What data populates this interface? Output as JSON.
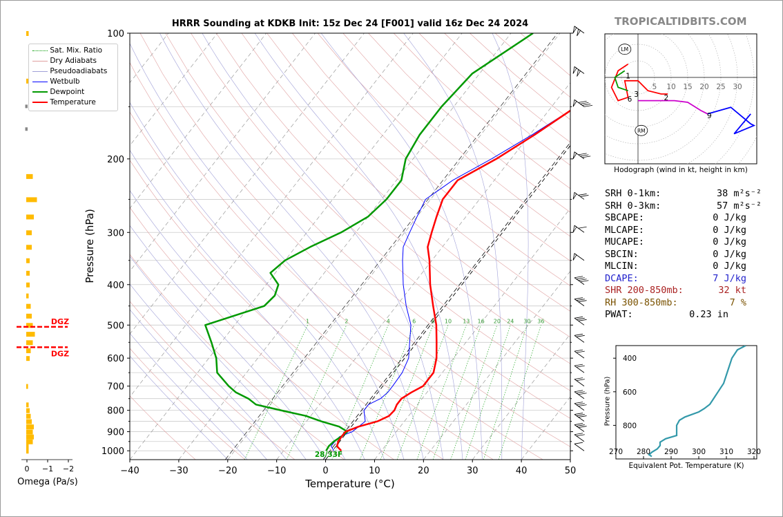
{
  "title": "HRRR Sounding at KDKB Init: 15z Dec 24 [F001] valid 16z Dec 24 2024",
  "watermark": "TROPICALTIDBITS.COM",
  "legend": [
    "Sat. Mix. Ratio",
    "Dry Adiabats",
    "Pseudoadiabats",
    "Wetbulb",
    "Dewpoint",
    "Temperature"
  ],
  "omega_xlabel": "Omega (Pa/s)",
  "dgz_label": "DGZ",
  "surface_label": "28/33F",
  "hodograph_caption": "Hodograph (wind in kt, height in km)",
  "hodo_rings": [
    "5",
    "10",
    "15",
    "20",
    "25",
    "30"
  ],
  "hodo_points": [
    "1",
    "2",
    "3",
    "6",
    "9"
  ],
  "hodo_markers": [
    "LM",
    "RM"
  ],
  "stats": [
    {
      "label": "SRH 0-1km:",
      "value": "38",
      "unit": "m²s⁻²",
      "color": "#000000"
    },
    {
      "label": "SRH 0-3km:",
      "value": "57",
      "unit": "m²s⁻²",
      "color": "#000000"
    },
    {
      "label": "SBCAPE:",
      "value": "0 J/kg",
      "unit": "",
      "color": "#000000"
    },
    {
      "label": "MLCAPE:",
      "value": "0 J/kg",
      "unit": "",
      "color": "#000000"
    },
    {
      "label": "MUCAPE:",
      "value": "0 J/kg",
      "unit": "",
      "color": "#000000"
    },
    {
      "label": "SBCIN:",
      "value": "0 J/kg",
      "unit": "",
      "color": "#000000"
    },
    {
      "label": "MLCIN:",
      "value": "0 J/kg",
      "unit": "",
      "color": "#000000"
    },
    {
      "label": "DCAPE:",
      "value": "7 J/kg",
      "unit": "",
      "color": "#2222cc"
    },
    {
      "label": "SHR 200-850mb:",
      "value": "32 kt",
      "unit": "",
      "color": "#aa2222"
    },
    {
      "label": "RH 300-850mb:",
      "value": "7 %",
      "unit": "",
      "color": "#7a5200"
    },
    {
      "label": "PWAT:",
      "value": "0.23 in",
      "unit": "",
      "color": "#000000"
    }
  ],
  "colors": {
    "temperature": "#ff0000",
    "dewpoint": "#009900",
    "wetbulb": "#0000ff",
    "hodo_low": "#ff0000",
    "hodo_mid": "#009900",
    "hodo_upper": "#cc00cc",
    "hodo_top": "#0000ff",
    "theta_e": "#3399aa",
    "omega": "#ffbb00",
    "dgz": "#ff0000"
  },
  "chart_data": [
    {
      "type": "line",
      "name": "skewt",
      "xlabel": "Temperature (°C)",
      "ylabel": "Pressure (hPa)",
      "xlim": [
        -40,
        50
      ],
      "ylim": [
        1050,
        100
      ],
      "x_ticks": [
        "−40",
        "−30",
        "−20",
        "−10",
        "0",
        "10",
        "20",
        "30",
        "40",
        "50"
      ],
      "y_ticks": [
        "100",
        "200",
        "300",
        "400",
        "500",
        "600",
        "700",
        "800",
        "900",
        "1000"
      ],
      "mixing_ratio_labels": [
        "1",
        "2",
        "4",
        "6",
        "8",
        "10",
        "13",
        "16",
        "20",
        "24",
        "30",
        "36"
      ],
      "temperature": [
        [
          1000,
          1.8
        ],
        [
          975,
          0.2
        ],
        [
          950,
          -0.3
        ],
        [
          925,
          -0.4
        ],
        [
          900,
          -0.4
        ],
        [
          875,
          1.5
        ],
        [
          850,
          4.5
        ],
        [
          825,
          6
        ],
        [
          800,
          6.2
        ],
        [
          775,
          5.8
        ],
        [
          750,
          5.8
        ],
        [
          725,
          6.8
        ],
        [
          700,
          8.2
        ],
        [
          650,
          8.2
        ],
        [
          600,
          6.5
        ],
        [
          550,
          4
        ],
        [
          500,
          1.2
        ],
        [
          450,
          -2.5
        ],
        [
          400,
          -6.5
        ],
        [
          350,
          -10.5
        ],
        [
          325,
          -13
        ],
        [
          300,
          -14.5
        ],
        [
          275,
          -16
        ],
        [
          250,
          -17.5
        ],
        [
          225,
          -17.5
        ],
        [
          200,
          -13
        ],
        [
          175,
          -9
        ],
        [
          150,
          -5
        ],
        [
          125,
          -1.5
        ],
        [
          100,
          1.5
        ]
      ],
      "dewpoint": [
        [
          1000,
          -1.3
        ],
        [
          975,
          -1.5
        ],
        [
          950,
          -1.2
        ],
        [
          925,
          -0.5
        ],
        [
          900,
          0
        ],
        [
          875,
          -2.5
        ],
        [
          850,
          -7
        ],
        [
          825,
          -11
        ],
        [
          800,
          -17
        ],
        [
          775,
          -23
        ],
        [
          750,
          -25.5
        ],
        [
          725,
          -29
        ],
        [
          700,
          -31.5
        ],
        [
          650,
          -36
        ],
        [
          600,
          -38.5
        ],
        [
          550,
          -42
        ],
        [
          500,
          -46
        ],
        [
          450,
          -37
        ],
        [
          425,
          -36.5
        ],
        [
          400,
          -37.5
        ],
        [
          375,
          -41
        ],
        [
          350,
          -40
        ],
        [
          325,
          -37
        ],
        [
          300,
          -33
        ],
        [
          275,
          -30
        ],
        [
          250,
          -29
        ],
        [
          225,
          -29
        ],
        [
          200,
          -31.5
        ],
        [
          175,
          -32.5
        ],
        [
          150,
          -32.5
        ],
        [
          125,
          -31.5
        ],
        [
          100,
          -25.5
        ]
      ],
      "wetbulb": [
        [
          1000,
          0.3
        ],
        [
          975,
          -1
        ],
        [
          950,
          -1
        ],
        [
          925,
          -0.8
        ],
        [
          900,
          1
        ],
        [
          875,
          1.5
        ],
        [
          850,
          2
        ],
        [
          825,
          1
        ],
        [
          800,
          0
        ],
        [
          775,
          0
        ],
        [
          750,
          1.5
        ],
        [
          725,
          2
        ],
        [
          700,
          2
        ],
        [
          650,
          1.8
        ],
        [
          600,
          0.8
        ],
        [
          550,
          -1.5
        ],
        [
          500,
          -4
        ],
        [
          450,
          -8
        ],
        [
          400,
          -12
        ],
        [
          350,
          -16
        ],
        [
          325,
          -18
        ],
        [
          300,
          -19
        ],
        [
          275,
          -20
        ],
        [
          250,
          -21
        ],
        [
          225,
          -18.5
        ],
        [
          200,
          -14
        ],
        [
          175,
          -9.5
        ],
        [
          150,
          -5
        ],
        [
          125,
          -2
        ],
        [
          100,
          1
        ]
      ],
      "wind_barbs_kt": [
        [
          1000,
          10
        ],
        [
          950,
          20
        ],
        [
          900,
          25
        ],
        [
          850,
          30
        ],
        [
          800,
          30
        ],
        [
          750,
          25
        ],
        [
          700,
          20
        ],
        [
          650,
          15
        ],
        [
          600,
          15
        ],
        [
          550,
          20
        ],
        [
          500,
          25
        ],
        [
          450,
          30
        ],
        [
          400,
          40
        ],
        [
          350,
          50
        ],
        [
          300,
          55
        ],
        [
          250,
          65
        ],
        [
          200,
          80
        ],
        [
          150,
          90
        ],
        [
          125,
          95
        ],
        [
          100,
          95
        ]
      ]
    },
    {
      "type": "line",
      "name": "hodograph",
      "xlim": [
        -10,
        37
      ],
      "ylim": [
        -25,
        13
      ],
      "low": [
        [
          -3,
          4
        ],
        [
          -6,
          2
        ],
        [
          -8,
          -3
        ],
        [
          -6,
          -7
        ],
        [
          -3,
          -6
        ],
        [
          -4,
          -1
        ],
        [
          0,
          -1
        ],
        [
          3,
          -4
        ],
        [
          7,
          -5
        ],
        [
          9,
          -5
        ]
      ],
      "mid": [
        [
          -3,
          -4
        ],
        [
          -6,
          -3
        ],
        [
          -7,
          0
        ],
        [
          -4,
          2
        ]
      ],
      "upper": [
        [
          0,
          -7
        ],
        [
          5,
          -7
        ],
        [
          11,
          -7
        ],
        [
          15,
          -7.5
        ],
        [
          19,
          -10
        ],
        [
          21,
          -11
        ]
      ],
      "top": [
        [
          21,
          -11
        ],
        [
          28,
          -9
        ],
        [
          34,
          -14
        ],
        [
          35,
          -14.5
        ],
        [
          29,
          -17
        ],
        [
          34,
          -11
        ]
      ]
    },
    {
      "type": "line",
      "name": "theta_e",
      "xlabel": "Equivalent Pot. Temperature (K)",
      "ylabel": "Pressure (hPa)",
      "xlim": [
        270,
        320
      ],
      "ylim": [
        1000,
        325
      ],
      "x_ticks": [
        "270",
        "280",
        "290",
        "300",
        "310",
        "320"
      ],
      "y_ticks": [
        "400",
        "600",
        "800"
      ],
      "points": [
        [
          985,
          283
        ],
        [
          975,
          282
        ],
        [
          960,
          283
        ],
        [
          940,
          285
        ],
        [
          920,
          286
        ],
        [
          900,
          286
        ],
        [
          880,
          288
        ],
        [
          860,
          292
        ],
        [
          840,
          292
        ],
        [
          800,
          292
        ],
        [
          770,
          293
        ],
        [
          750,
          295
        ],
        [
          720,
          300
        ],
        [
          700,
          302
        ],
        [
          675,
          304
        ],
        [
          650,
          305
        ],
        [
          625,
          306
        ],
        [
          600,
          307
        ],
        [
          575,
          308
        ],
        [
          550,
          309
        ],
        [
          500,
          310
        ],
        [
          450,
          311
        ],
        [
          400,
          312
        ],
        [
          350,
          314
        ],
        [
          325,
          317
        ]
      ]
    },
    {
      "type": "bar",
      "name": "omega",
      "xlabel": "Omega (Pa/s)",
      "x_ticks": [
        "0",
        "−1",
        "−2"
      ],
      "xlim": [
        0.4,
        -2
      ],
      "bars": [
        [
          100,
          -0.05
        ],
        [
          130,
          -0.05
        ],
        [
          150,
          0.05
        ],
        [
          170,
          0.05
        ],
        [
          220,
          -0.25
        ],
        [
          250,
          -0.45
        ],
        [
          275,
          -0.3
        ],
        [
          300,
          -0.2
        ],
        [
          325,
          -0.2
        ],
        [
          350,
          -0.1
        ],
        [
          375,
          -0.1
        ],
        [
          400,
          -0.1
        ],
        [
          425,
          -0.05
        ],
        [
          450,
          -0.15
        ],
        [
          475,
          -0.2
        ],
        [
          500,
          -0.25
        ],
        [
          525,
          -0.35
        ],
        [
          550,
          -0.25
        ],
        [
          575,
          -0.15
        ],
        [
          600,
          -0.1
        ],
        [
          700,
          -0.02
        ],
        [
          775,
          -0.05
        ],
        [
          800,
          -0.1
        ],
        [
          825,
          -0.15
        ],
        [
          850,
          -0.2
        ],
        [
          875,
          -0.3
        ],
        [
          900,
          -0.25
        ],
        [
          925,
          -0.3
        ],
        [
          950,
          -0.25
        ],
        [
          975,
          -0.05
        ],
        [
          1000,
          -0.05
        ]
      ],
      "dgz_levels": [
        505,
        565
      ]
    }
  ]
}
